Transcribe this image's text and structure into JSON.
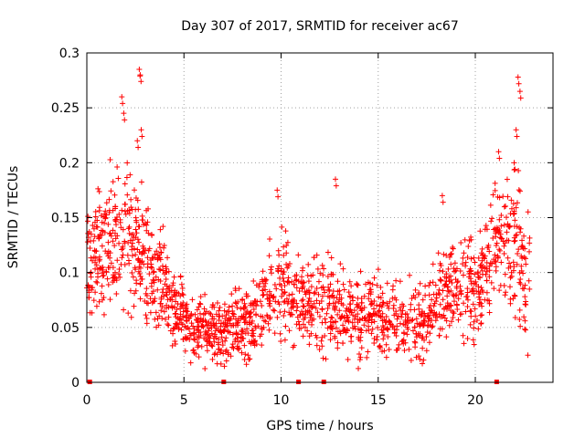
{
  "chart_data": {
    "type": "scatter",
    "title": "Day 307 of 2017, SRMTID for receiver ac67",
    "xlabel": "GPS time / hours",
    "ylabel": "SRMTID / TECUs",
    "xlim": [
      0,
      24
    ],
    "ylim": [
      0,
      0.3
    ],
    "xticks": [
      0,
      5,
      10,
      15,
      20
    ],
    "xtick_labels": [
      "0",
      "5",
      "10",
      "15",
      "20"
    ],
    "yticks": [
      0,
      0.05,
      0.1,
      0.15,
      0.2,
      0.25,
      0.3
    ],
    "ytick_labels": [
      "0",
      "0.05",
      "0.1",
      "0.15",
      "0.2",
      "0.25",
      "0.3"
    ],
    "grid": true,
    "marker": "+",
    "color": "#ff0000",
    "series": [
      {
        "name": "SRMTID",
        "envelope": {
          "x": [
            0.0,
            0.5,
            1.0,
            1.5,
            2.0,
            2.5,
            3.0,
            3.5,
            4.0,
            4.5,
            5.0,
            5.5,
            6.0,
            6.5,
            7.0,
            7.5,
            8.0,
            8.5,
            9.0,
            9.5,
            10.0,
            10.5,
            11.0,
            11.5,
            12.0,
            12.5,
            13.0,
            13.5,
            14.0,
            14.5,
            15.0,
            15.5,
            16.0,
            16.5,
            17.0,
            17.5,
            18.0,
            18.5,
            19.0,
            19.5,
            20.0,
            20.5,
            21.0,
            21.5,
            22.0,
            22.5
          ],
          "center": [
            0.105,
            0.12,
            0.125,
            0.13,
            0.14,
            0.13,
            0.115,
            0.095,
            0.085,
            0.07,
            0.055,
            0.052,
            0.05,
            0.05,
            0.048,
            0.05,
            0.052,
            0.055,
            0.065,
            0.085,
            0.09,
            0.075,
            0.07,
            0.07,
            0.072,
            0.07,
            0.065,
            0.06,
            0.058,
            0.06,
            0.062,
            0.06,
            0.058,
            0.055,
            0.055,
            0.06,
            0.08,
            0.085,
            0.09,
            0.09,
            0.085,
            0.09,
            0.12,
            0.13,
            0.12,
            0.1
          ],
          "spread": [
            0.04,
            0.045,
            0.05,
            0.05,
            0.055,
            0.06,
            0.05,
            0.04,
            0.035,
            0.03,
            0.025,
            0.025,
            0.025,
            0.025,
            0.025,
            0.025,
            0.025,
            0.025,
            0.03,
            0.04,
            0.04,
            0.035,
            0.03,
            0.03,
            0.035,
            0.035,
            0.03,
            0.03,
            0.03,
            0.03,
            0.03,
            0.03,
            0.03,
            0.03,
            0.03,
            0.03,
            0.035,
            0.035,
            0.035,
            0.035,
            0.035,
            0.04,
            0.045,
            0.05,
            0.06,
            0.05
          ]
        },
        "peaks": [
          {
            "x": 1.8,
            "y": 0.26
          },
          {
            "x": 2.7,
            "y": 0.285
          },
          {
            "x": 2.75,
            "y": 0.28
          },
          {
            "x": 2.8,
            "y": 0.23
          },
          {
            "x": 2.6,
            "y": 0.22
          },
          {
            "x": 1.9,
            "y": 0.245
          },
          {
            "x": 9.8,
            "y": 0.175
          },
          {
            "x": 12.8,
            "y": 0.185
          },
          {
            "x": 18.3,
            "y": 0.17
          },
          {
            "x": 21.2,
            "y": 0.21
          },
          {
            "x": 22.2,
            "y": 0.278
          },
          {
            "x": 22.3,
            "y": 0.265
          },
          {
            "x": 22.1,
            "y": 0.23
          },
          {
            "x": 22.0,
            "y": 0.2
          }
        ],
        "point_count": 1800
      }
    ],
    "zero_markers_x": [
      0.15,
      7.05,
      10.9,
      12.2,
      21.1
    ]
  }
}
